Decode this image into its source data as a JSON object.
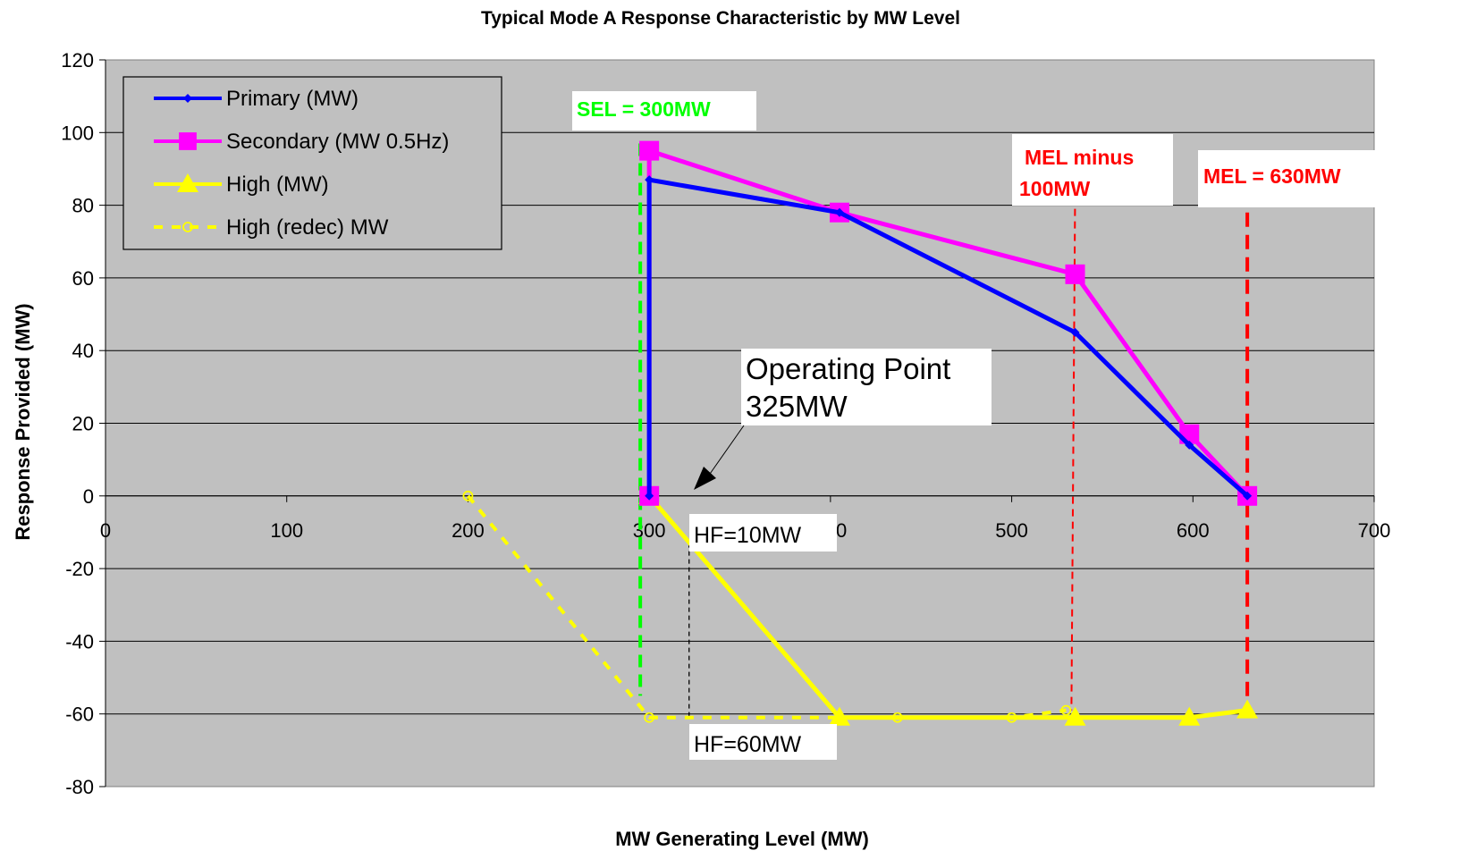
{
  "chart_data": {
    "type": "line",
    "title": "Typical Mode A Response Characteristic by MW Level",
    "xlabel": "MW Generating Level (MW)",
    "ylabel": "Response Provided (MW)",
    "xlim": [
      0,
      700
    ],
    "ylim": [
      -80,
      120
    ],
    "xticks": [
      "0",
      "100",
      "200",
      "300",
      "400",
      "500",
      "600",
      "700"
    ],
    "yticks": [
      "120",
      "100",
      "80",
      "60",
      "40",
      "20",
      "0",
      "-20",
      "-40",
      "-60",
      "-80"
    ],
    "grid": "horizontal",
    "legend_position": "top-left",
    "plot_background": "#c0c0c0",
    "series": [
      {
        "name": "Primary (MW)",
        "color": "#0000ff",
        "marker": "diamond",
        "style": "solid",
        "points": [
          [
            300,
            0
          ],
          [
            300,
            87
          ],
          [
            405,
            78
          ],
          [
            535,
            45
          ],
          [
            598,
            14
          ],
          [
            630,
            0
          ]
        ]
      },
      {
        "name": "Secondary (MW 0.5Hz)",
        "color": "#ff00ff",
        "marker": "square",
        "style": "solid",
        "points": [
          [
            300,
            0
          ],
          [
            300,
            95
          ],
          [
            405,
            78
          ],
          [
            535,
            61
          ],
          [
            598,
            17
          ],
          [
            630,
            0
          ]
        ]
      },
      {
        "name": "High (MW)",
        "color": "#ffff00",
        "marker": "triangle",
        "style": "solid",
        "points": [
          [
            300,
            0
          ],
          [
            405,
            -61
          ],
          [
            535,
            -61
          ],
          [
            598,
            -61
          ],
          [
            630,
            -59
          ]
        ]
      },
      {
        "name": "High (redec) MW",
        "color": "#ffff00",
        "marker": "circle-open",
        "style": "dashed",
        "points": [
          [
            200,
            0
          ],
          [
            300,
            -61
          ],
          [
            437,
            -61
          ],
          [
            500,
            -61
          ],
          [
            530,
            -59
          ]
        ]
      }
    ],
    "annotations": {
      "sel_label": "SEL = 300MW",
      "mel_minus_line1": "MEL minus",
      "mel_minus_line2": "100MW",
      "mel_label": "MEL = 630MW",
      "operating_point_line1": "Operating Point",
      "operating_point_line2": "325MW",
      "hf10": "HF=10MW",
      "hf60": "HF=60MW",
      "sel_x": 300,
      "mel_minus_x": 530,
      "mel_x": 630,
      "hf_line_x": 322,
      "sel_color": "#00ff00",
      "mel_color": "#ff0000"
    }
  }
}
